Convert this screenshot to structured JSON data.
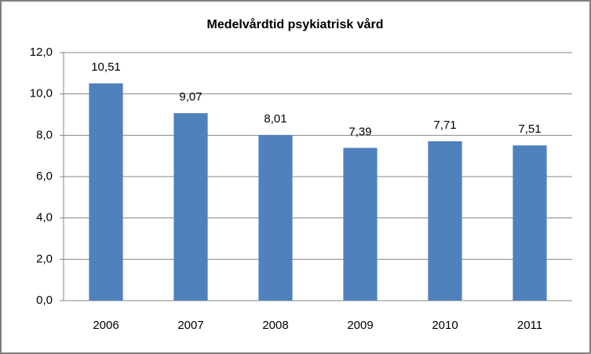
{
  "chart_data": {
    "type": "bar",
    "title": "Medelvårdtid psykiatrisk vård",
    "categories": [
      "2006",
      "2007",
      "2008",
      "2009",
      "2010",
      "2011"
    ],
    "values": [
      10.51,
      9.07,
      8.01,
      7.39,
      7.71,
      7.51
    ],
    "value_labels": [
      "10,51",
      "9,07",
      "8,01",
      "7,39",
      "7,71",
      "7,51"
    ],
    "color": "#4f81bd",
    "ylim": [
      0,
      12
    ],
    "yticks": [
      {
        "value": 0,
        "label": "0,0"
      },
      {
        "value": 2,
        "label": "2,0"
      },
      {
        "value": 4,
        "label": "4,0"
      },
      {
        "value": 6,
        "label": "6,0"
      },
      {
        "value": 8,
        "label": "8,0"
      },
      {
        "value": 10,
        "label": "10,0"
      },
      {
        "value": 12,
        "label": "12,0"
      }
    ],
    "grid": true
  }
}
